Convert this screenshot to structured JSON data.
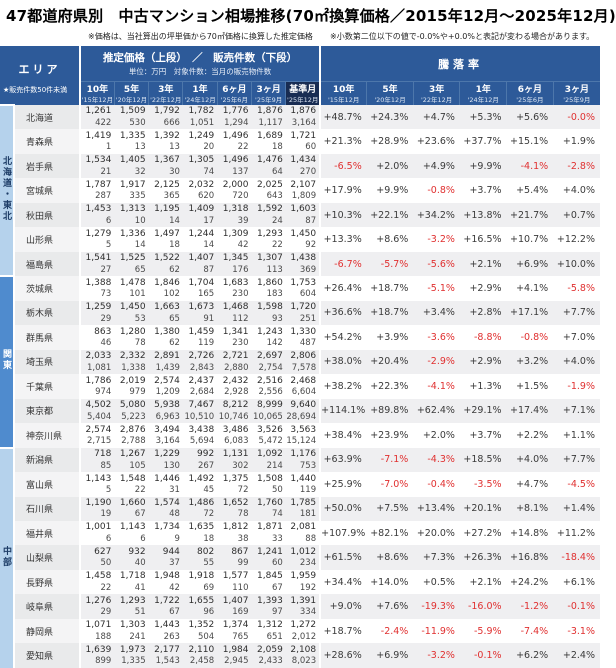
{
  "title": "47都道府県別　中古マンション相場推移(70㎡換算価格／2015年12月～2025年12月)",
  "notes": {
    "note1": "※価格は、当社算出の坪単価から70㎡価格に換算した推定価格",
    "note2": "※小数第二位以下の値で-0.0%や+0.0%と表記が変わる場合があります。"
  },
  "area_header": {
    "label": "エリア",
    "note": "★販売件数50件未満"
  },
  "price_section": {
    "title": "推定価格（上段）　／　販売件数（下段）",
    "subtitle": "単位：万円　対象件数：当月の販売物件数"
  },
  "change_section": {
    "title": "騰落率"
  },
  "price_columns": [
    {
      "label": "10年",
      "sub": "'15年12月"
    },
    {
      "label": "5年",
      "sub": "'20年12月"
    },
    {
      "label": "3年",
      "sub": "'22年12月"
    },
    {
      "label": "1年",
      "sub": "'24年12月"
    },
    {
      "label": "6ヶ月",
      "sub": "'25年6月"
    },
    {
      "label": "3ヶ月",
      "sub": "'25年9月"
    },
    {
      "label": "基準月",
      "sub": "'25年12月"
    }
  ],
  "change_columns": [
    {
      "label": "10年",
      "sub": "'15年12月"
    },
    {
      "label": "5年",
      "sub": "'20年12月"
    },
    {
      "label": "3年",
      "sub": "'22年12月"
    },
    {
      "label": "1年",
      "sub": "'24年12月"
    },
    {
      "label": "6ヶ月",
      "sub": "'25年6月"
    },
    {
      "label": "3ヶ月",
      "sub": "'25年9月"
    }
  ],
  "colors": {
    "header_blue": "#2d5a99",
    "base_month_navy": "#182c52",
    "region_light_blue": "#b5d2ec",
    "region_medium_blue": "#4f8bce",
    "negative_red": "#e03030",
    "zebra_gray": "#efeff1"
  },
  "regions": [
    {
      "name": "北海道・東北",
      "style": "light",
      "rows": [
        {
          "name": "北海道",
          "prices": [
            "1,261",
            "1,509",
            "1,792",
            "1,782",
            "1,776",
            "1,876",
            "1,876"
          ],
          "counts": [
            "422",
            "530",
            "666",
            "1,051",
            "1,294",
            "1,117",
            "3,164"
          ],
          "changes": [
            "+48.7%",
            "+24.3%",
            "+4.7%",
            "+5.3%",
            "+5.6%",
            "-0.0%"
          ]
        },
        {
          "name": "青森県",
          "prices": [
            "1,419",
            "1,335",
            "1,392",
            "1,249",
            "1,496",
            "1,689",
            "1,721"
          ],
          "counts": [
            "1",
            "13",
            "13",
            "20",
            "22",
            "18",
            "60"
          ],
          "changes": [
            "+21.3%",
            "+28.9%",
            "+23.6%",
            "+37.7%",
            "+15.1%",
            "+1.9%"
          ]
        },
        {
          "name": "岩手県",
          "prices": [
            "1,534",
            "1,405",
            "1,367",
            "1,305",
            "1,496",
            "1,476",
            "1,434"
          ],
          "counts": [
            "21",
            "32",
            "30",
            "74",
            "137",
            "64",
            "270"
          ],
          "changes": [
            "-6.5%",
            "+2.0%",
            "+4.9%",
            "+9.9%",
            "-4.1%",
            "-2.8%"
          ]
        },
        {
          "name": "宮城県",
          "prices": [
            "1,787",
            "1,917",
            "2,125",
            "2,032",
            "2,000",
            "2,025",
            "2,107"
          ],
          "counts": [
            "287",
            "335",
            "365",
            "620",
            "720",
            "643",
            "1,809"
          ],
          "changes": [
            "+17.9%",
            "+9.9%",
            "-0.8%",
            "+3.7%",
            "+5.4%",
            "+4.0%"
          ]
        },
        {
          "name": "秋田県",
          "prices": [
            "1,453",
            "1,313",
            "1,195",
            "1,409",
            "1,318",
            "1,592",
            "1,603"
          ],
          "counts": [
            "6",
            "10",
            "14",
            "17",
            "39",
            "24",
            "87"
          ],
          "changes": [
            "+10.3%",
            "+22.1%",
            "+34.2%",
            "+13.8%",
            "+21.7%",
            "+0.7%"
          ]
        },
        {
          "name": "山形県",
          "prices": [
            "1,279",
            "1,336",
            "1,497",
            "1,244",
            "1,309",
            "1,293",
            "1,450"
          ],
          "counts": [
            "5",
            "14",
            "18",
            "14",
            "42",
            "22",
            "92"
          ],
          "changes": [
            "+13.3%",
            "+8.6%",
            "-3.2%",
            "+16.5%",
            "+10.7%",
            "+12.2%"
          ]
        },
        {
          "name": "福島県",
          "prices": [
            "1,541",
            "1,525",
            "1,522",
            "1,407",
            "1,345",
            "1,307",
            "1,438"
          ],
          "counts": [
            "27",
            "65",
            "62",
            "87",
            "176",
            "113",
            "369"
          ],
          "changes": [
            "-6.7%",
            "-5.7%",
            "-5.6%",
            "+2.1%",
            "+6.9%",
            "+10.0%"
          ]
        }
      ]
    },
    {
      "name": "関東",
      "style": "medium",
      "rows": [
        {
          "name": "茨城県",
          "prices": [
            "1,388",
            "1,478",
            "1,846",
            "1,704",
            "1,683",
            "1,860",
            "1,753"
          ],
          "counts": [
            "73",
            "101",
            "102",
            "165",
            "230",
            "183",
            "604"
          ],
          "changes": [
            "+26.4%",
            "+18.7%",
            "-5.1%",
            "+2.9%",
            "+4.1%",
            "-5.8%"
          ]
        },
        {
          "name": "栃木県",
          "prices": [
            "1,259",
            "1,450",
            "1,663",
            "1,673",
            "1,468",
            "1,598",
            "1,720"
          ],
          "counts": [
            "29",
            "53",
            "65",
            "91",
            "112",
            "93",
            "251"
          ],
          "changes": [
            "+36.6%",
            "+18.7%",
            "+3.4%",
            "+2.8%",
            "+17.1%",
            "+7.7%"
          ]
        },
        {
          "name": "群馬県",
          "prices": [
            "863",
            "1,280",
            "1,380",
            "1,459",
            "1,341",
            "1,243",
            "1,330"
          ],
          "counts": [
            "46",
            "78",
            "62",
            "119",
            "230",
            "142",
            "487"
          ],
          "changes": [
            "+54.2%",
            "+3.9%",
            "-3.6%",
            "-8.8%",
            "-0.8%",
            "+7.0%"
          ]
        },
        {
          "name": "埼玉県",
          "prices": [
            "2,033",
            "2,332",
            "2,891",
            "2,726",
            "2,721",
            "2,697",
            "2,806"
          ],
          "counts": [
            "1,081",
            "1,338",
            "1,439",
            "2,843",
            "2,880",
            "2,754",
            "7,578"
          ],
          "changes": [
            "+38.0%",
            "+20.4%",
            "-2.9%",
            "+2.9%",
            "+3.2%",
            "+4.0%"
          ]
        },
        {
          "name": "千葉県",
          "prices": [
            "1,786",
            "2,019",
            "2,574",
            "2,437",
            "2,432",
            "2,516",
            "2,468"
          ],
          "counts": [
            "974",
            "979",
            "1,209",
            "2,684",
            "2,928",
            "2,556",
            "6,604"
          ],
          "changes": [
            "+38.2%",
            "+22.3%",
            "-4.1%",
            "+1.3%",
            "+1.5%",
            "-1.9%"
          ]
        },
        {
          "name": "東京都",
          "prices": [
            "4,502",
            "5,080",
            "5,938",
            "7,467",
            "8,212",
            "8,999",
            "9,640"
          ],
          "counts": [
            "5,404",
            "5,223",
            "6,963",
            "10,510",
            "10,746",
            "10,065",
            "28,694"
          ],
          "changes": [
            "+114.1%",
            "+89.8%",
            "+62.4%",
            "+29.1%",
            "+17.4%",
            "+7.1%"
          ]
        },
        {
          "name": "神奈川県",
          "prices": [
            "2,574",
            "2,876",
            "3,494",
            "3,438",
            "3,486",
            "3,526",
            "3,563"
          ],
          "counts": [
            "2,715",
            "2,788",
            "3,164",
            "5,694",
            "6,083",
            "5,472",
            "15,124"
          ],
          "changes": [
            "+38.4%",
            "+23.9%",
            "+2.0%",
            "+3.7%",
            "+2.2%",
            "+1.1%"
          ]
        }
      ]
    },
    {
      "name": "中部",
      "style": "light",
      "rows": [
        {
          "name": "新潟県",
          "prices": [
            "718",
            "1,267",
            "1,229",
            "992",
            "1,131",
            "1,092",
            "1,176"
          ],
          "counts": [
            "85",
            "105",
            "130",
            "267",
            "302",
            "214",
            "753"
          ],
          "changes": [
            "+63.9%",
            "-7.1%",
            "-4.3%",
            "+18.5%",
            "+4.0%",
            "+7.7%"
          ]
        },
        {
          "name": "富山県",
          "prices": [
            "1,143",
            "1,548",
            "1,446",
            "1,492",
            "1,375",
            "1,508",
            "1,440"
          ],
          "counts": [
            "5",
            "22",
            "31",
            "45",
            "72",
            "50",
            "119"
          ],
          "changes": [
            "+25.9%",
            "-7.0%",
            "-0.4%",
            "-3.5%",
            "+4.7%",
            "-4.5%"
          ]
        },
        {
          "name": "石川県",
          "prices": [
            "1,190",
            "1,660",
            "1,574",
            "1,486",
            "1,652",
            "1,760",
            "1,785"
          ],
          "counts": [
            "19",
            "67",
            "48",
            "72",
            "78",
            "74",
            "181"
          ],
          "changes": [
            "+50.0%",
            "+7.5%",
            "+13.4%",
            "+20.1%",
            "+8.1%",
            "+1.4%"
          ]
        },
        {
          "name": "福井県",
          "prices": [
            "1,001",
            "1,143",
            "1,734",
            "1,635",
            "1,812",
            "1,871",
            "2,081"
          ],
          "counts": [
            "6",
            "6",
            "9",
            "18",
            "38",
            "33",
            "88"
          ],
          "changes": [
            "+107.9%",
            "+82.1%",
            "+20.0%",
            "+27.2%",
            "+14.8%",
            "+11.2%"
          ]
        },
        {
          "name": "山梨県",
          "prices": [
            "627",
            "932",
            "944",
            "802",
            "867",
            "1,241",
            "1,012"
          ],
          "counts": [
            "50",
            "40",
            "37",
            "55",
            "99",
            "60",
            "234"
          ],
          "changes": [
            "+61.5%",
            "+8.6%",
            "+7.3%",
            "+26.3%",
            "+16.8%",
            "-18.4%"
          ]
        },
        {
          "name": "長野県",
          "prices": [
            "1,458",
            "1,718",
            "1,948",
            "1,918",
            "1,577",
            "1,845",
            "1,959"
          ],
          "counts": [
            "22",
            "41",
            "42",
            "69",
            "110",
            "67",
            "192"
          ],
          "changes": [
            "+34.4%",
            "+14.0%",
            "+0.5%",
            "+2.1%",
            "+24.2%",
            "+6.1%"
          ]
        },
        {
          "name": "岐阜県",
          "prices": [
            "1,276",
            "1,293",
            "1,722",
            "1,655",
            "1,407",
            "1,393",
            "1,391"
          ],
          "counts": [
            "29",
            "51",
            "67",
            "96",
            "169",
            "97",
            "334"
          ],
          "changes": [
            "+9.0%",
            "+7.6%",
            "-19.3%",
            "-16.0%",
            "-1.2%",
            "-0.1%"
          ]
        },
        {
          "name": "静岡県",
          "prices": [
            "1,071",
            "1,303",
            "1,443",
            "1,352",
            "1,374",
            "1,312",
            "1,272"
          ],
          "counts": [
            "188",
            "241",
            "263",
            "504",
            "765",
            "651",
            "2,012"
          ],
          "changes": [
            "+18.7%",
            "-2.4%",
            "-11.9%",
            "-5.9%",
            "-7.4%",
            "-3.1%"
          ]
        },
        {
          "name": "愛知県",
          "prices": [
            "1,639",
            "1,973",
            "2,177",
            "2,110",
            "1,984",
            "2,059",
            "2,108"
          ],
          "counts": [
            "899",
            "1,335",
            "1,543",
            "2,458",
            "2,945",
            "2,433",
            "8,023"
          ],
          "changes": [
            "+28.6%",
            "+6.9%",
            "-3.2%",
            "-0.1%",
            "+6.2%",
            "+2.4%"
          ]
        }
      ]
    }
  ]
}
